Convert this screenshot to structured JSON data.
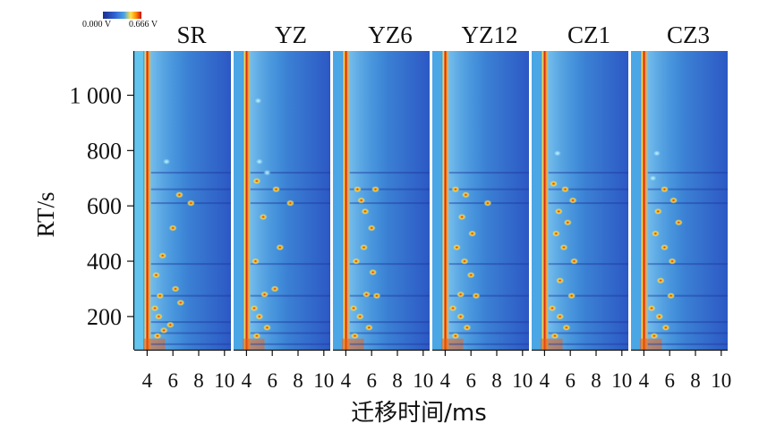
{
  "chart_data": {
    "type": "heatmap",
    "title": "",
    "xlabel": "迁移时间/ms",
    "ylabel": "RT/s",
    "colorbar": {
      "min_label": "0.000 V",
      "max_label": "0.666 V",
      "colors": [
        "#1c2d8f",
        "#2f5fd0",
        "#4aa3e6",
        "#ffe34a",
        "#ff8a00",
        "#c81010"
      ]
    },
    "ylim": [
      80,
      1160
    ],
    "xlim": [
      3,
      10.5
    ],
    "y_ticks": [
      {
        "value": 200,
        "label": "200"
      },
      {
        "value": 400,
        "label": "400"
      },
      {
        "value": 600,
        "label": "600"
      },
      {
        "value": 800,
        "label": "800"
      },
      {
        "value": 1000,
        "label": "1 000"
      }
    ],
    "x_ticks": [
      {
        "value": 4,
        "label": "4"
      },
      {
        "value": 6,
        "label": "6"
      },
      {
        "value": 8,
        "label": "8"
      },
      {
        "value": 10,
        "label": "10"
      }
    ],
    "panels": [
      {
        "name": "SR",
        "spots": [
          [
            7.4,
            610
          ],
          [
            6.5,
            640
          ],
          [
            5.5,
            760
          ],
          [
            6.2,
            300
          ],
          [
            5.0,
            275
          ],
          [
            4.6,
            230
          ],
          [
            4.9,
            200
          ],
          [
            5.3,
            150
          ],
          [
            4.8,
            130
          ],
          [
            5.8,
            170
          ],
          [
            6.6,
            250
          ],
          [
            4.7,
            350
          ],
          [
            5.2,
            420
          ],
          [
            6.0,
            520
          ]
        ]
      },
      {
        "name": "YZ",
        "spots": [
          [
            7.4,
            610
          ],
          [
            6.3,
            660
          ],
          [
            4.8,
            690
          ],
          [
            5.6,
            720
          ],
          [
            5.0,
            760
          ],
          [
            4.9,
            980
          ],
          [
            6.2,
            300
          ],
          [
            5.4,
            280
          ],
          [
            4.6,
            230
          ],
          [
            5.0,
            200
          ],
          [
            5.6,
            160
          ],
          [
            4.8,
            130
          ],
          [
            6.6,
            450
          ],
          [
            5.3,
            560
          ],
          [
            4.7,
            400
          ]
        ]
      },
      {
        "name": "YZ6",
        "spots": [
          [
            6.3,
            660
          ],
          [
            4.9,
            660
          ],
          [
            5.5,
            580
          ],
          [
            6.0,
            520
          ],
          [
            5.4,
            450
          ],
          [
            4.8,
            400
          ],
          [
            6.4,
            275
          ],
          [
            5.6,
            280
          ],
          [
            4.6,
            230
          ],
          [
            5.1,
            200
          ],
          [
            5.8,
            160
          ],
          [
            4.7,
            130
          ],
          [
            6.1,
            360
          ],
          [
            5.2,
            620
          ]
        ]
      },
      {
        "name": "YZ12",
        "spots": [
          [
            4.8,
            660
          ],
          [
            5.6,
            640
          ],
          [
            7.3,
            610
          ],
          [
            5.3,
            560
          ],
          [
            6.1,
            500
          ],
          [
            4.9,
            450
          ],
          [
            5.5,
            400
          ],
          [
            6.4,
            275
          ],
          [
            5.2,
            280
          ],
          [
            4.6,
            230
          ],
          [
            5.2,
            200
          ],
          [
            5.7,
            160
          ],
          [
            4.8,
            130
          ],
          [
            6.0,
            350
          ]
        ]
      },
      {
        "name": "CZ1",
        "spots": [
          [
            5.0,
            790
          ],
          [
            4.7,
            680
          ],
          [
            5.6,
            660
          ],
          [
            6.2,
            620
          ],
          [
            5.1,
            580
          ],
          [
            5.8,
            540
          ],
          [
            4.9,
            500
          ],
          [
            5.5,
            450
          ],
          [
            6.3,
            400
          ],
          [
            5.2,
            330
          ],
          [
            6.1,
            275
          ],
          [
            4.6,
            230
          ],
          [
            5.2,
            200
          ],
          [
            5.7,
            160
          ],
          [
            4.8,
            130
          ]
        ]
      },
      {
        "name": "CZ3",
        "spots": [
          [
            5.0,
            790
          ],
          [
            4.7,
            700
          ],
          [
            5.6,
            660
          ],
          [
            6.3,
            620
          ],
          [
            5.1,
            580
          ],
          [
            6.7,
            540
          ],
          [
            4.9,
            500
          ],
          [
            5.6,
            450
          ],
          [
            6.2,
            400
          ],
          [
            5.3,
            330
          ],
          [
            6.1,
            275
          ],
          [
            4.6,
            230
          ],
          [
            5.2,
            200
          ],
          [
            5.7,
            160
          ],
          [
            4.8,
            130
          ]
        ]
      }
    ]
  }
}
